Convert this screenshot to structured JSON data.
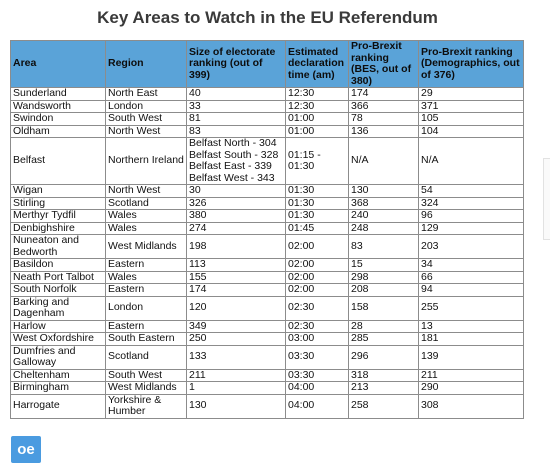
{
  "title": "Key Areas to Watch  in the EU Referendum",
  "headers": [
    "Area",
    "Region",
    "Size of electorate ranking (out of 399)",
    "Estimated declaration time (am)",
    "Pro-Brexit ranking (BES, out of 380)",
    "Pro-Brexit ranking (Demographics, out of 376)"
  ],
  "rows": [
    {
      "area": "Sunderland",
      "region": "North East",
      "size": "40",
      "time": "12:30",
      "bes": "174",
      "demo": "29"
    },
    {
      "area": "Wandsworth",
      "region": "London",
      "size": "33",
      "time": "12:30",
      "bes": "366",
      "demo": "371"
    },
    {
      "area": "Swindon",
      "region": "South West",
      "size": "81",
      "time": "01:00",
      "bes": "78",
      "demo": "105"
    },
    {
      "area": "Oldham",
      "region": "North West",
      "size": "83",
      "time": "01:00",
      "bes": "136",
      "demo": "104"
    },
    {
      "area": "Belfast",
      "region": "Northern Ireland",
      "size_lines": [
        "Belfast North - 304",
        "Belfast South - 328",
        "Belfast East - 339",
        "Belfast West - 343"
      ],
      "time": "01:15 - 01:30",
      "bes": "N/A",
      "demo": "N/A"
    },
    {
      "area": "Wigan",
      "region": "North West",
      "size": "30",
      "time": "01:30",
      "bes": "130",
      "demo": "54"
    },
    {
      "area": "Stirling",
      "region": "Scotland",
      "size": "326",
      "time": "01:30",
      "bes": "368",
      "demo": "324"
    },
    {
      "area": "Merthyr Tydfil",
      "region": "Wales",
      "size": "380",
      "time": "01:30",
      "bes": "240",
      "demo": "96"
    },
    {
      "area": "Denbighshire",
      "region": "Wales",
      "size": "274",
      "time": "01:45",
      "bes": "248",
      "demo": "129"
    },
    {
      "area": "Nuneaton and Bedworth",
      "region": "West Midlands",
      "size": "198",
      "time": "02:00",
      "bes": "83",
      "demo": "203"
    },
    {
      "area": "Basildon",
      "region": "Eastern",
      "size": "113",
      "time": "02:00",
      "bes": "15",
      "demo": "34"
    },
    {
      "area": "Neath Port Talbot",
      "region": "Wales",
      "size": "155",
      "time": "02:00",
      "bes": "298",
      "demo": "66"
    },
    {
      "area": "South Norfolk",
      "region": "Eastern",
      "size": "174",
      "time": "02:00",
      "bes": "208",
      "demo": "94"
    },
    {
      "area": "Barking and Dagenham",
      "region": "London",
      "size": "120",
      "time": "02:30",
      "bes": "158",
      "demo": "255"
    },
    {
      "area": "Harlow",
      "region": "Eastern",
      "size": "349",
      "time": "02:30",
      "bes": "28",
      "demo": "13"
    },
    {
      "area": "West Oxfordshire",
      "region": "South Eastern",
      "size": "250",
      "time": "03:00",
      "bes": "285",
      "demo": "181"
    },
    {
      "area": "Dumfries and Galloway",
      "region": "Scotland",
      "size": "133",
      "time": "03:30",
      "bes": "296",
      "demo": "139"
    },
    {
      "area": "Cheltenham",
      "region": "South West",
      "size": "211",
      "time": "03:30",
      "bes": "318",
      "demo": "211"
    },
    {
      "area": "Birmingham",
      "region": "West Midlands",
      "size": "1",
      "time": "04:00",
      "bes": "213",
      "demo": "290"
    },
    {
      "area": "Harrogate",
      "region": "Yorkshire & Humber",
      "size": "130",
      "time": "04:00",
      "bes": "258",
      "demo": "308"
    }
  ],
  "logo": "oe",
  "colors": {
    "header_bg": "#5aa3d8",
    "logo_bg": "#4a9be0",
    "title": "#3a3a3a"
  }
}
